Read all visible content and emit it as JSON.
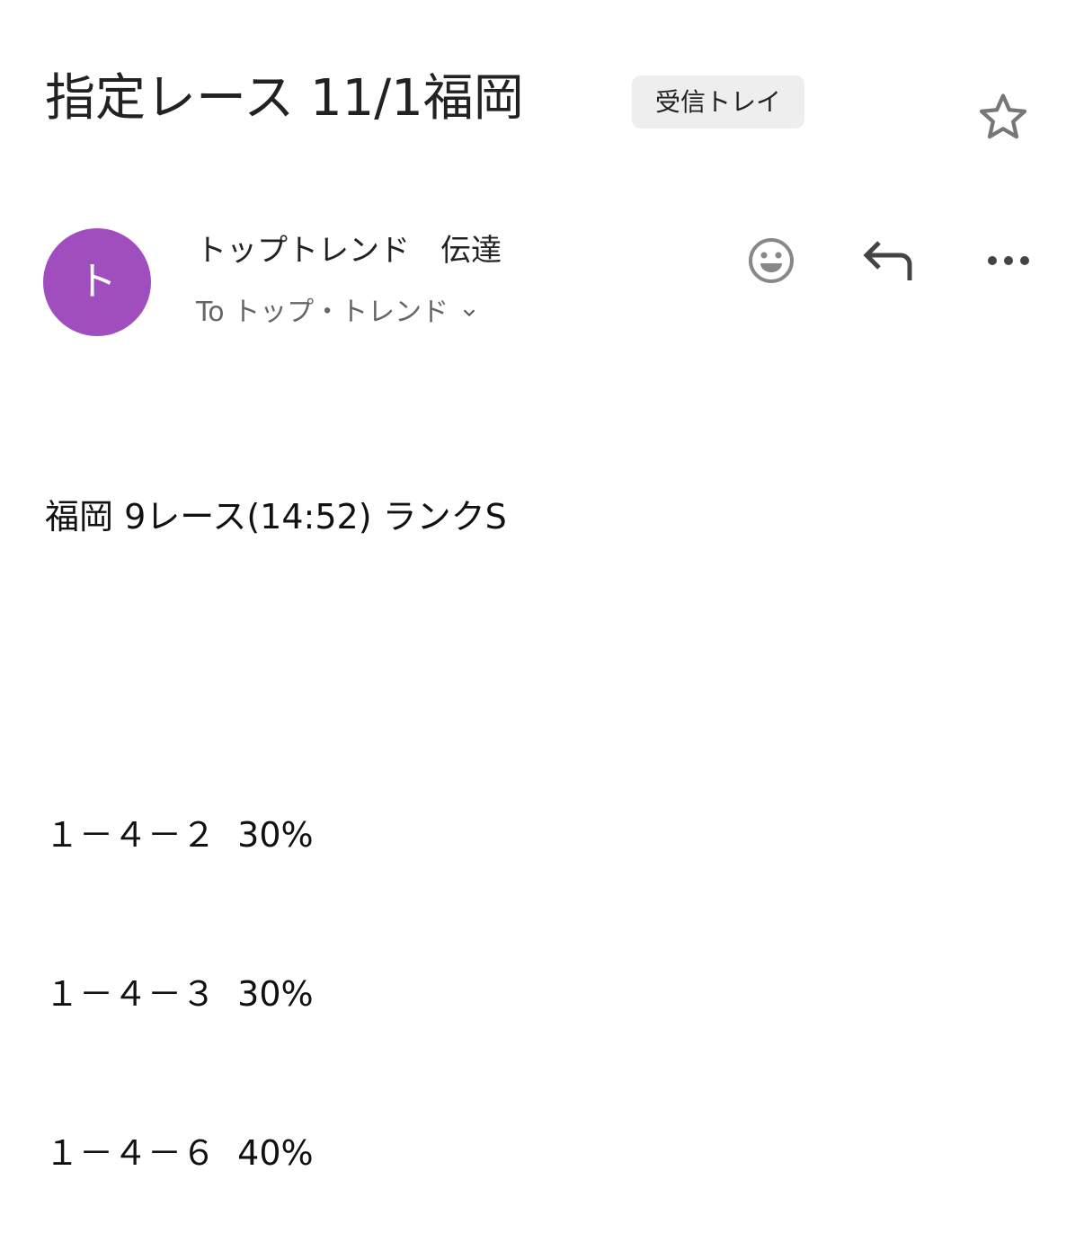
{
  "header": {
    "subject": "指定レース 11/1福岡",
    "label_badge": "受信トレイ",
    "star_icon": "star-outline-icon"
  },
  "message": {
    "avatar_letter": "ト",
    "avatar_color": "#a04dbd",
    "sender": "トップトレンド　伝達",
    "recipient": "To トップ・トレンド",
    "actions": [
      "emoji-reaction-icon",
      "reply-icon",
      "more-options-icon"
    ],
    "body": {
      "heading": "福岡 9レース(14:52) ランクS",
      "lines": [
        "１－４－２  30%",
        "１－４－３  30%",
        "１－４－６  40%"
      ]
    }
  }
}
